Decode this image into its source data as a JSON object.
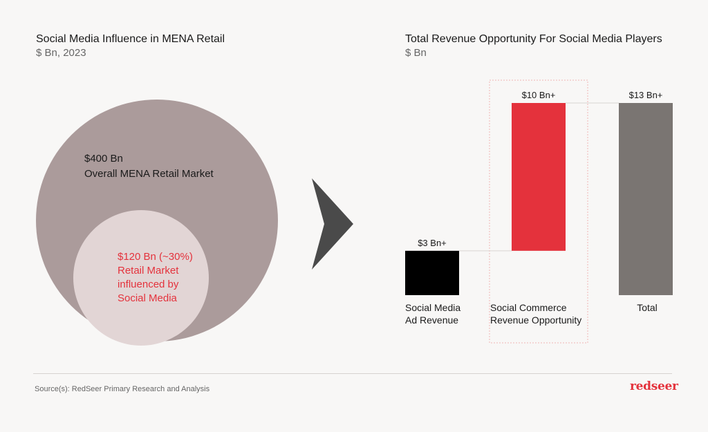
{
  "left_panel": {
    "title": "Social Media Influence in MENA Retail",
    "subtitle": "$ Bn, 2023",
    "outer": {
      "value": "$400 Bn",
      "label": "Overall MENA Retail Market",
      "color": "#ab9b9b"
    },
    "inner": {
      "line1": "$120 Bn (~30%)",
      "line2": "Retail Market",
      "line3": "influenced by",
      "line4": "Social Media",
      "color": "#e2d5d5",
      "text_color": "#e4323c"
    }
  },
  "arrow": {
    "color": "#4a4a4a",
    "icon": "chevron-right-icon"
  },
  "right_panel": {
    "title": "Total Revenue Opportunity For Social Media Players",
    "subtitle": "$ Bn"
  },
  "chart_data": {
    "type": "bar",
    "categories": [
      "Social Media Ad Revenue",
      "Social Commerce Revenue Opportunity",
      "Total"
    ],
    "category_lines": [
      [
        "Social Media",
        "Ad Revenue"
      ],
      [
        "Social Commerce",
        "Revenue Opportunity"
      ],
      [
        "Total"
      ]
    ],
    "values": [
      3,
      10,
      13
    ],
    "bases": [
      0,
      3,
      0
    ],
    "data_labels": [
      "$3 Bn+",
      "$10 Bn+",
      "$13 Bn+"
    ],
    "colors": [
      "#000000",
      "#e4323c",
      "#7a7572"
    ],
    "ylim": [
      0,
      13
    ],
    "highlight_category": "Social Commerce Revenue Opportunity"
  },
  "footer": {
    "source": "Source(s): RedSeer Primary Research and Analysis",
    "logo": "redseer",
    "logo_color": "#e4323c"
  }
}
